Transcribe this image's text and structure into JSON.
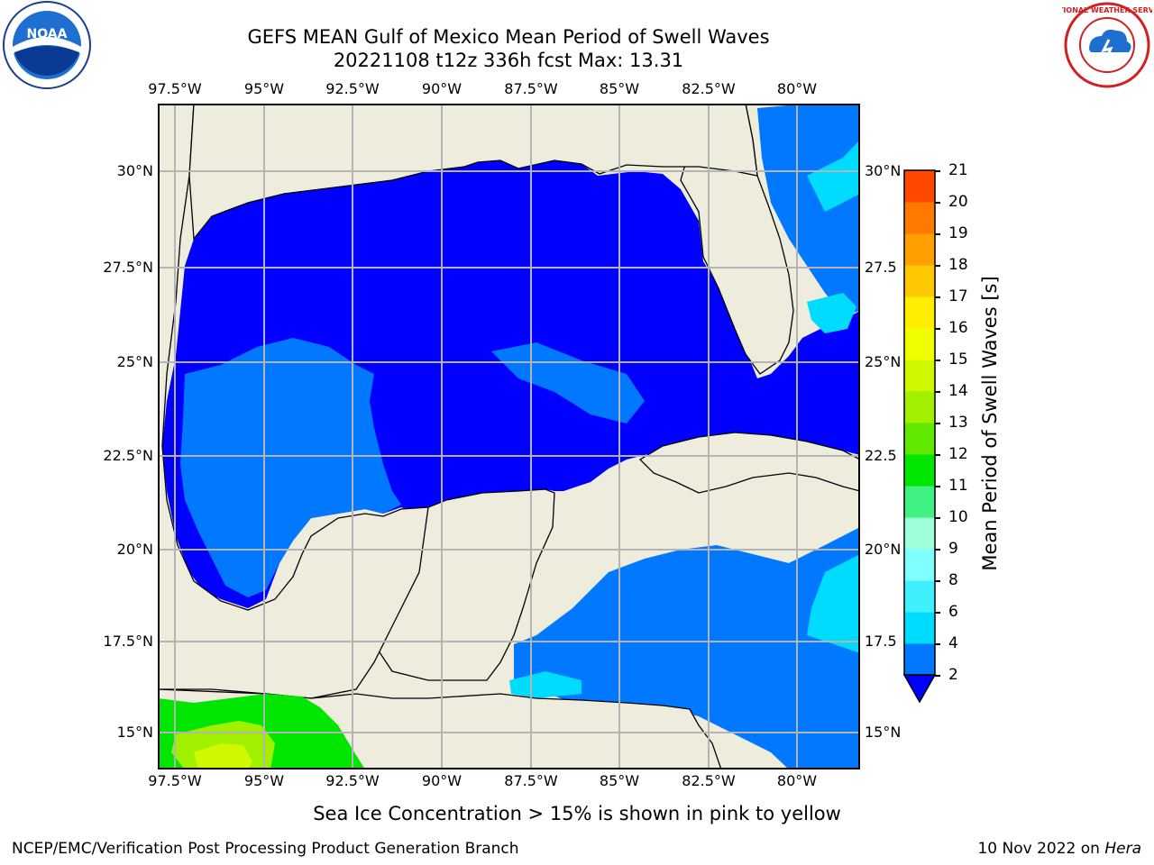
{
  "title": {
    "line1": "GEFS MEAN Gulf of Mexico Mean Period of Swell Waves",
    "line2": "20221108 t12z 336h fcst   Max: 13.31"
  },
  "map": {
    "lon_ticks_top": [
      "97.5°W",
      "95°W",
      "92.5°W",
      "90°W",
      "87.5°W",
      "85°W",
      "82.5°W",
      "80°W"
    ],
    "lon_ticks_bottom": [
      "97.5°W",
      "95°W",
      "92.5°W",
      "90°W",
      "87.5°W",
      "85°W",
      "82.5°W",
      "80°W"
    ],
    "lat_ticks_left": [
      "30°N",
      "27.5°N",
      "25°N",
      "22.5°N",
      "20°N",
      "17.5°N",
      "15°N"
    ],
    "lat_ticks_right": [
      "30°N",
      "27.5",
      "25°N",
      "22.5",
      "20°N",
      "17.5",
      "15°N"
    ],
    "lon_range": [
      -98,
      -78.4
    ],
    "lat_range": [
      14,
      31.8
    ],
    "colors": {
      "land": "#eeecdc",
      "grid": "#b4b4b4"
    }
  },
  "colorbar": {
    "label": "Mean Period of Swell Waves [s]",
    "ticks": [
      "2",
      "4",
      "6",
      "8",
      "9",
      "10",
      "11",
      "12",
      "13",
      "14",
      "15",
      "16",
      "17",
      "18",
      "19",
      "20",
      "21"
    ],
    "colors": [
      "#0078ff",
      "#00dcff",
      "#40f0ff",
      "#80ffff",
      "#a0ffd8",
      "#40f080",
      "#00e600",
      "#60e800",
      "#a0f000",
      "#d0f800",
      "#f0ff00",
      "#ffee00",
      "#ffc800",
      "#ffa000",
      "#ff7800",
      "#ff4800",
      "#ff1800",
      "#ff0000"
    ],
    "under_color": "#0000ff"
  },
  "caption": "Sea Ice Concentration > 15% is shown in pink to yellow",
  "footer": {
    "left": "NCEP/EMC/Verification Post Processing Product Generation Branch",
    "right_date": "10 Nov 2022 on ",
    "right_host": "Hera"
  },
  "logos": {
    "noaa": "NOAA",
    "nws": "NATIONAL WEATHER SERVICE"
  }
}
